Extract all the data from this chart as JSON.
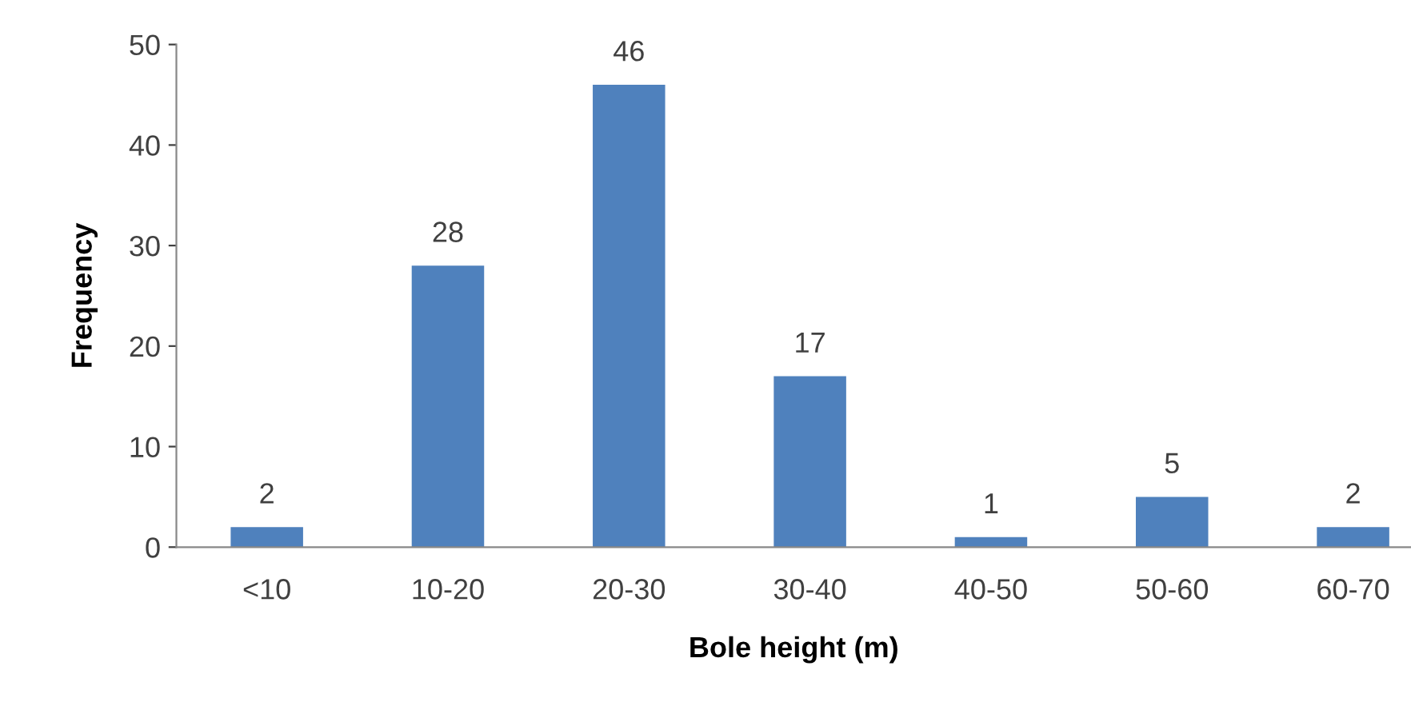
{
  "chart_data": {
    "type": "bar",
    "xlabel": "Bole height (m)",
    "ylabel": "Frequency",
    "categories": [
      "<10",
      "10-20",
      "20-30",
      "30-40",
      "40-50",
      "50-60",
      "60-70"
    ],
    "values": [
      2,
      28,
      46,
      17,
      1,
      5,
      2
    ],
    "color": "#4f81bd",
    "ylim": [
      0,
      50
    ],
    "yticks": [
      0,
      10,
      20,
      30,
      40,
      50
    ],
    "data_labels": true,
    "grid": false,
    "legend": false
  }
}
